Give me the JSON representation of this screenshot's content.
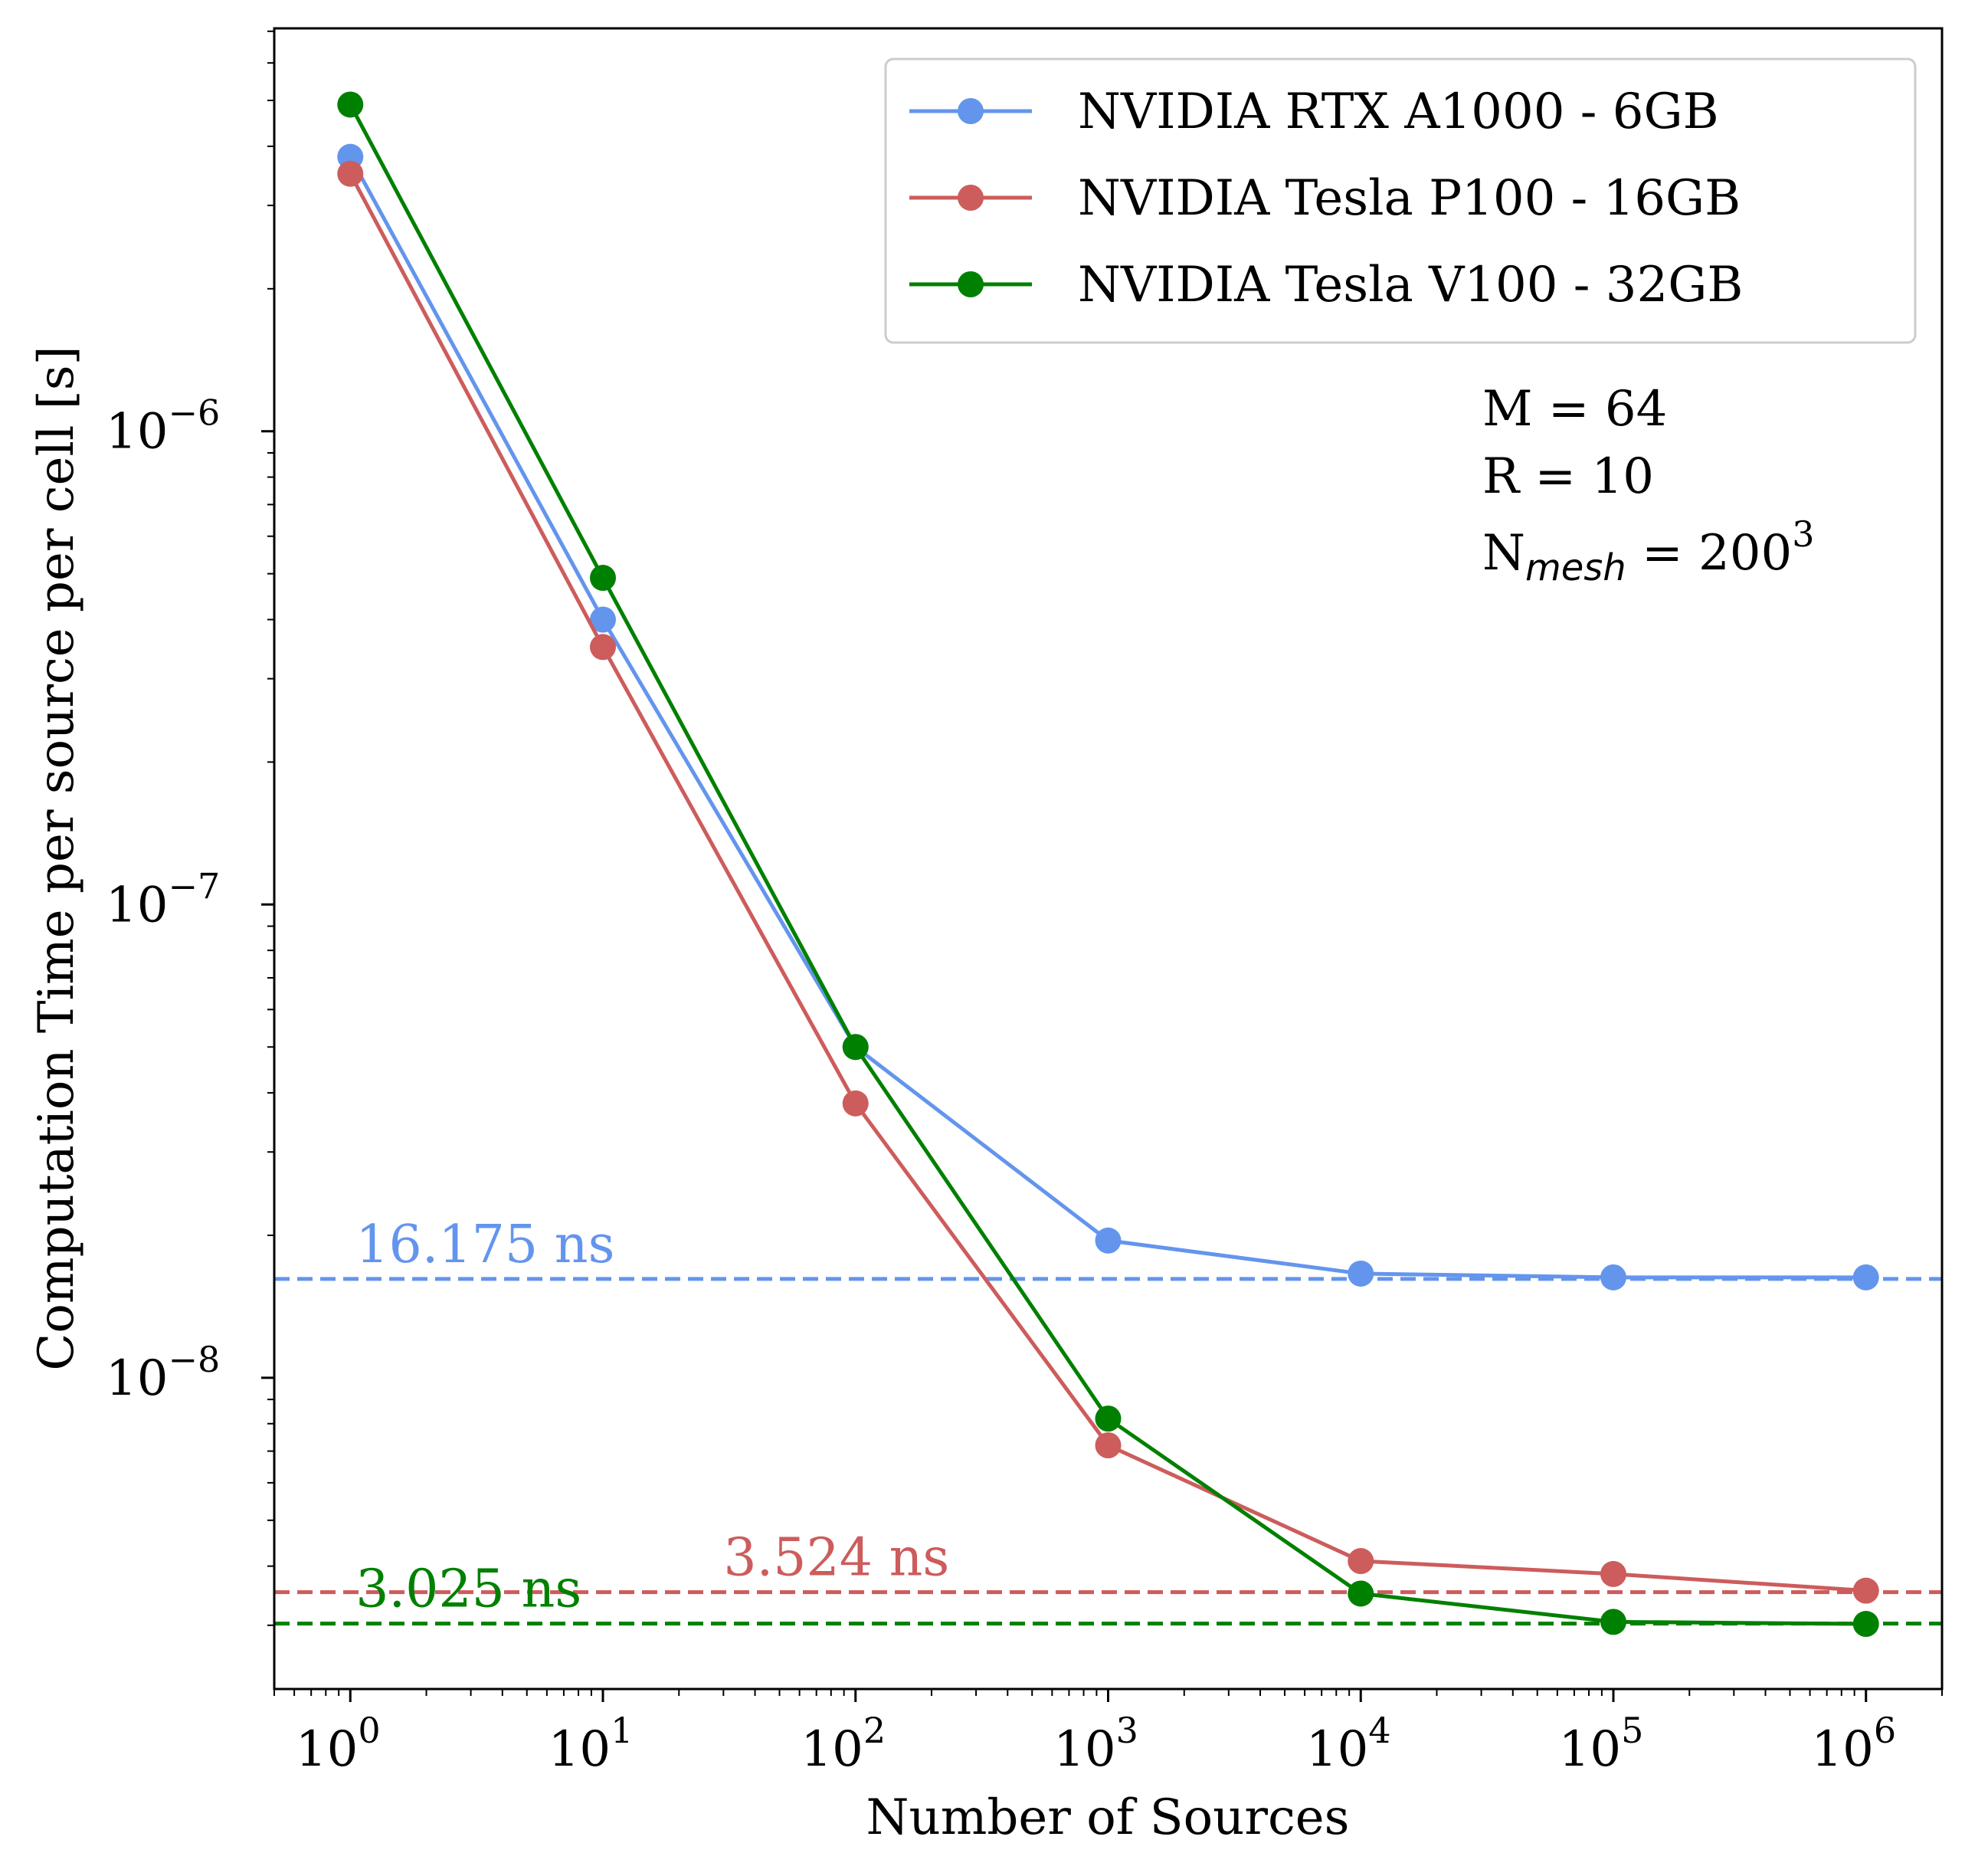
{
  "chart_data": {
    "type": "line",
    "title": "",
    "xlabel": "Number of Sources",
    "ylabel": "Computation Time per source per cell [s]",
    "xscale": "log",
    "yscale": "log",
    "xlim": [
      0.5,
      2000000
    ],
    "ylim": [
      2.2e-09,
      7.1e-06
    ],
    "grid": false,
    "legend_position": "top-right",
    "x": [
      1,
      10,
      100,
      1000,
      10000,
      100000,
      1000000
    ],
    "x_tick_labels": [
      {
        "base": "10",
        "exp": "0"
      },
      {
        "base": "10",
        "exp": "1"
      },
      {
        "base": "10",
        "exp": "2"
      },
      {
        "base": "10",
        "exp": "3"
      },
      {
        "base": "10",
        "exp": "4"
      },
      {
        "base": "10",
        "exp": "5"
      },
      {
        "base": "10",
        "exp": "6"
      }
    ],
    "y_tick_labels": [
      {
        "value": 1e-06,
        "base": "10",
        "exp": "−6"
      },
      {
        "value": 1e-07,
        "base": "10",
        "exp": "−7"
      },
      {
        "value": 1e-08,
        "base": "10",
        "exp": "−8"
      }
    ],
    "series": [
      {
        "name": "NVIDIA RTX A1000 - 6GB",
        "color": "#6495ED",
        "values": [
          3.8e-06,
          4e-07,
          5e-08,
          1.95e-08,
          1.66e-08,
          1.63e-08,
          1.63e-08
        ]
      },
      {
        "name": "NVIDIA Tesla P100 - 16GB",
        "color": "#CD5C5C",
        "values": [
          3.5e-06,
          3.5e-07,
          3.8e-08,
          7.2e-09,
          4.1e-09,
          3.85e-09,
          3.55e-09
        ]
      },
      {
        "name": "NVIDIA Tesla V100 - 32GB",
        "color": "#008000",
        "values": [
          4.9e-06,
          4.9e-07,
          5e-08,
          8.2e-09,
          3.5e-09,
          3.05e-09,
          3.02e-09
        ]
      }
    ],
    "reference_lines": [
      {
        "value": 1.6175e-08,
        "label": "16.175 ns",
        "color": "#6495ED",
        "label_x": 1.05
      },
      {
        "value": 3.524e-09,
        "label": "3.524 ns",
        "color": "#CD5C5C",
        "label_x": 30
      },
      {
        "value": 3.025e-09,
        "label": "3.025 ns",
        "color": "#008000",
        "label_x": 1.05
      }
    ],
    "annotations": {
      "m": "M = 64",
      "r": "R = 10",
      "nmesh_prefix": "N",
      "nmesh_sub": "mesh",
      "nmesh_mid": " = 200",
      "nmesh_sup": "3"
    }
  }
}
